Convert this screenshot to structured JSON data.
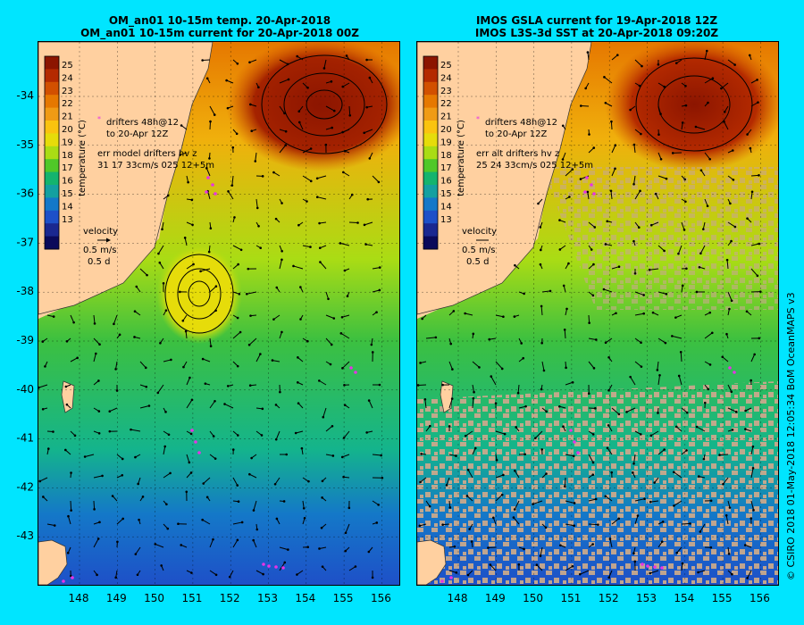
{
  "titles": {
    "left_line1": "OM_an01 10-15m temp. 20-Apr-2018",
    "left_line2": "OM_an01 10-15m current for 20-Apr-2018 00Z",
    "right_line1": "IMOS GSLA current for 19-Apr-2018 12Z",
    "right_line2": "IMOS L3S-3d SST at 20-Apr-2018 09:20Z"
  },
  "axes": {
    "lat_ticks": [
      "-34",
      "-35",
      "-36",
      "-37",
      "-38",
      "-39",
      "-40",
      "-41",
      "-42",
      "-43"
    ],
    "lon_ticks": [
      "148",
      "149",
      "150",
      "151",
      "152",
      "153",
      "154",
      "155",
      "156"
    ]
  },
  "colorbar": {
    "label": "temperature (°C)",
    "ticks": [
      "25",
      "24",
      "23",
      "22",
      "21",
      "20",
      "19",
      "18",
      "17",
      "16",
      "15",
      "14",
      "13"
    ],
    "colors": [
      "#8c1500",
      "#b42a00",
      "#d25000",
      "#e67800",
      "#f09b14",
      "#fac30f",
      "#e6dc0a",
      "#aadc14",
      "#50c828",
      "#14b46e",
      "#14a0a0",
      "#1478c8",
      "#1e50c8",
      "#1a2890",
      "#0a0a5a"
    ]
  },
  "left_legend": {
    "drifters_line1": "drifters 48h@12",
    "drifters_line2": "to 20-Apr 12Z",
    "err_line1": "err model drifters hv z",
    "err_line2": "31 17 33cm/s 025 12+5m",
    "velocity_label": "velocity",
    "velocity_speed": "0.5 m/s",
    "velocity_time": "0.5 d"
  },
  "right_legend": {
    "drifters_line1": "drifters 48h@12",
    "drifters_line2": "to 20-Apr 12Z",
    "err_line1": "err alt drifters hv z",
    "err_line2": "25 24 33cm/s 025 12+5m",
    "velocity_label": "velocity",
    "velocity_speed": "0.5 m/s",
    "velocity_time": "0.5 d"
  },
  "colors": {
    "background": "#00e5ff",
    "land": "#ffd0a0",
    "cloud_mask": "#c8a88c",
    "drifters": "#e633e6"
  },
  "credit": "© CSIRO 2018   01-May-2018 12:05:34 BoM OceanMAPS v3"
}
